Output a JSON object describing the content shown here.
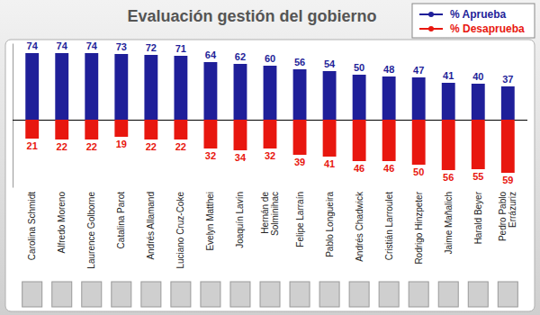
{
  "chart_data": {
    "type": "bar",
    "title": "Evaluación gestión del gobierno",
    "categories": [
      "Carolina Schmidt",
      "Alfredo Moreno",
      "Laurence Golborne",
      "Catalina Parot",
      "Andrés Allamand",
      "Luciano Cruz-Coke",
      "Evelyn Matthei",
      "Joaquín Lavín",
      "Hernán de Solminihac",
      "Felipe Larraín",
      "Pablo Longueira",
      "Andrés Chadwick",
      "Cristián Larroulet",
      "Rodrigo Hinzpeter",
      "Jaime Mañalich",
      "Harald Beyer",
      "Pedro Pablo Errázuriz"
    ],
    "series": [
      {
        "name": "% Aprueba",
        "color": "#1f1f99",
        "values": [
          74,
          74,
          74,
          73,
          72,
          71,
          64,
          62,
          60,
          56,
          54,
          50,
          48,
          47,
          41,
          40,
          37
        ]
      },
      {
        "name": "% Desaprueba",
        "color": "#e8170f",
        "axis": "y2",
        "values": [
          21,
          22,
          22,
          19,
          22,
          22,
          32,
          34,
          32,
          39,
          41,
          46,
          46,
          50,
          56,
          55,
          59
        ]
      }
    ],
    "ylim": [
      0,
      85
    ],
    "yticks": [
      0
    ],
    "y2lim": [
      0,
      75
    ],
    "y2ticks": [
      0
    ],
    "data_labels": true,
    "tick_labels": false,
    "legend": "upper right",
    "grid": false
  }
}
